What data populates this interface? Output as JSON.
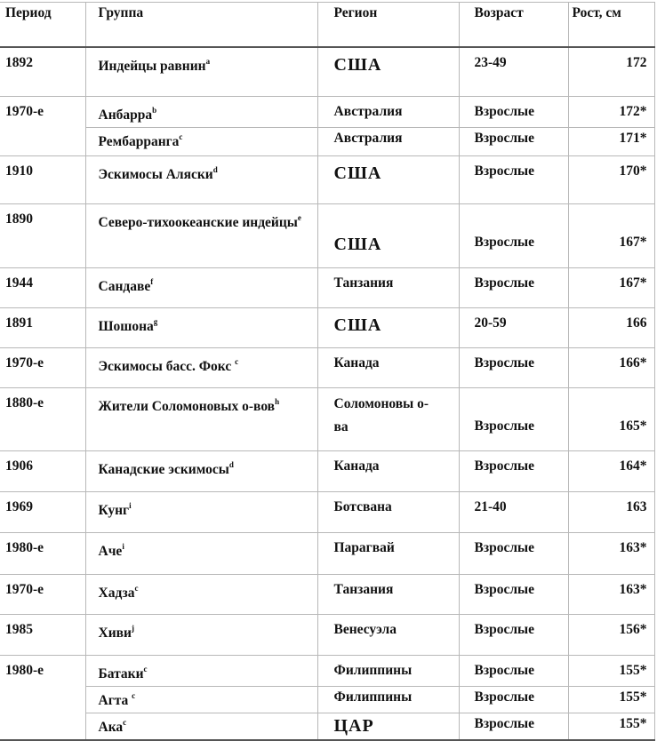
{
  "headers": {
    "period": "Период",
    "group": "Группа",
    "region": "Регион",
    "age": "Возраст",
    "height": "Рост, см"
  },
  "periods": [
    {
      "period": "1892",
      "entries": [
        {
          "group": "Индейцы равнин",
          "sup": "a",
          "region": "США",
          "age": "23-49",
          "height": "172"
        }
      ]
    },
    {
      "period": "1970-е",
      "entries": [
        {
          "group": "Анбарра",
          "sup": "b",
          "region": "Австралия",
          "age": "Взрослые",
          "height": "172*"
        },
        {
          "group": "Рембарранга",
          "sup": "c",
          "region": "Австралия",
          "age": "Взрослые",
          "height": "171*"
        }
      ]
    },
    {
      "period": "1910",
      "entries": [
        {
          "group": "Эскимосы Аляски",
          "sup": "d",
          "region": "США",
          "age": "Взрослые",
          "height": "170*"
        }
      ]
    },
    {
      "period": "1890",
      "entries": [
        {
          "group": "Северо-тихоокеанские индейцы",
          "sup": "e",
          "region": "США",
          "age": "Взрослые",
          "height": "167*"
        }
      ]
    },
    {
      "period": "1944",
      "entries": [
        {
          "group": "Сандаве",
          "sup": "f",
          "region": "Танзания",
          "age": "Взрослые",
          "height": "167*"
        }
      ]
    },
    {
      "period": "1891",
      "entries": [
        {
          "group": "Шошона",
          "sup": "g",
          "region": "США",
          "age": "20-59",
          "height": "166"
        }
      ]
    },
    {
      "period": "1970-е",
      "entries": [
        {
          "group": "Эскимосы басс. Фокс ",
          "sup": "c",
          "region": "Канада",
          "age": "Взрослые",
          "height": "166*"
        }
      ]
    },
    {
      "period": "1880-е",
      "entries": [
        {
          "group": "Жители Соломоновых о-вов",
          "sup": "h",
          "region": "Соломоновы о-ва",
          "age": "Взрослые",
          "height": "165*"
        }
      ]
    },
    {
      "period": "1906",
      "entries": [
        {
          "group": "Канадские эскимосы",
          "sup": "d",
          "region": "Канада",
          "age": "Взрослые",
          "height": "164*"
        }
      ]
    },
    {
      "period": "1969",
      "entries": [
        {
          "group": "Кунг",
          "sup": "i",
          "region": "Ботсвана",
          "age": "21-40",
          "height": "163"
        }
      ]
    },
    {
      "period": "1980-е",
      "entries": [
        {
          "group": "Аче",
          "sup": "i",
          "region": "Парагвай",
          "age": "Взрослые",
          "height": "163*"
        }
      ]
    },
    {
      "period": "1970-е",
      "entries": [
        {
          "group": "Хадза",
          "sup": "c",
          "region": "Танзания",
          "age": "Взрослые",
          "height": "163*"
        }
      ]
    },
    {
      "period": "1985",
      "entries": [
        {
          "group": "Хиви",
          "sup": "j",
          "region": "Венесуэла",
          "age": "Взрослые",
          "height": "156*"
        }
      ]
    },
    {
      "period": "1980-е",
      "entries": [
        {
          "group": "Батаки",
          "sup": "c",
          "region": "Филиппины",
          "age": "Взрослые",
          "height": "155*"
        },
        {
          "group": "Агта ",
          "sup": "c",
          "region": "Филиппины",
          "age": "Взрослые",
          "height": "155*"
        },
        {
          "group": "Ака",
          "sup": "c",
          "region": "ЦАР",
          "age": "Взрослые",
          "height": "155*"
        }
      ]
    }
  ]
}
